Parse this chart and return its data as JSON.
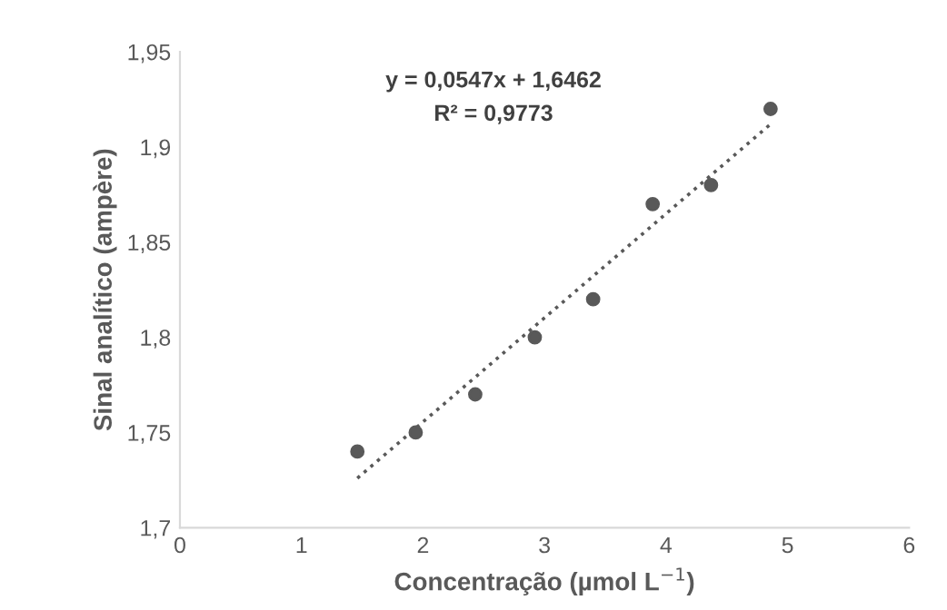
{
  "chart_data": {
    "type": "scatter",
    "xlabel": "Concentração (µmol L$^{−1}$)",
    "ylabel": "Sinal analítico (ampère)",
    "annotations": [
      "y = 0,0547x + 1,6462",
      "R² = 0,9773"
    ],
    "series": [
      {
        "color": "#595959",
        "marker": "circle",
        "x": [
          1.46,
          1.94,
          2.43,
          2.92,
          3.4,
          3.89,
          4.37,
          4.86
        ],
        "values": [
          1.74,
          1.75,
          1.77,
          1.8,
          1.82,
          1.87,
          1.88,
          1.92
        ]
      },
      {
        "type": "line",
        "color": "#595959",
        "marker": "none",
        "line_style": "dotted",
        "x": [
          1.46,
          4.86
        ],
        "values": [
          1.726,
          1.912
        ]
      }
    ],
    "xlim": [
      0,
      6
    ],
    "xticks": [
      0,
      1,
      2,
      3,
      4,
      5,
      6
    ],
    "ylim": [
      1.7,
      1.95
    ],
    "yticks": [
      {
        "value": 1.7,
        "label": "1,7"
      },
      {
        "value": 1.75,
        "label": "1,75"
      },
      {
        "value": 1.8,
        "label": "1,8"
      },
      {
        "value": 1.85,
        "label": "1,85"
      },
      {
        "value": 1.9,
        "label": "1,9"
      },
      {
        "value": 1.95,
        "label": "1,95"
      }
    ],
    "grid": false,
    "legend": false
  }
}
